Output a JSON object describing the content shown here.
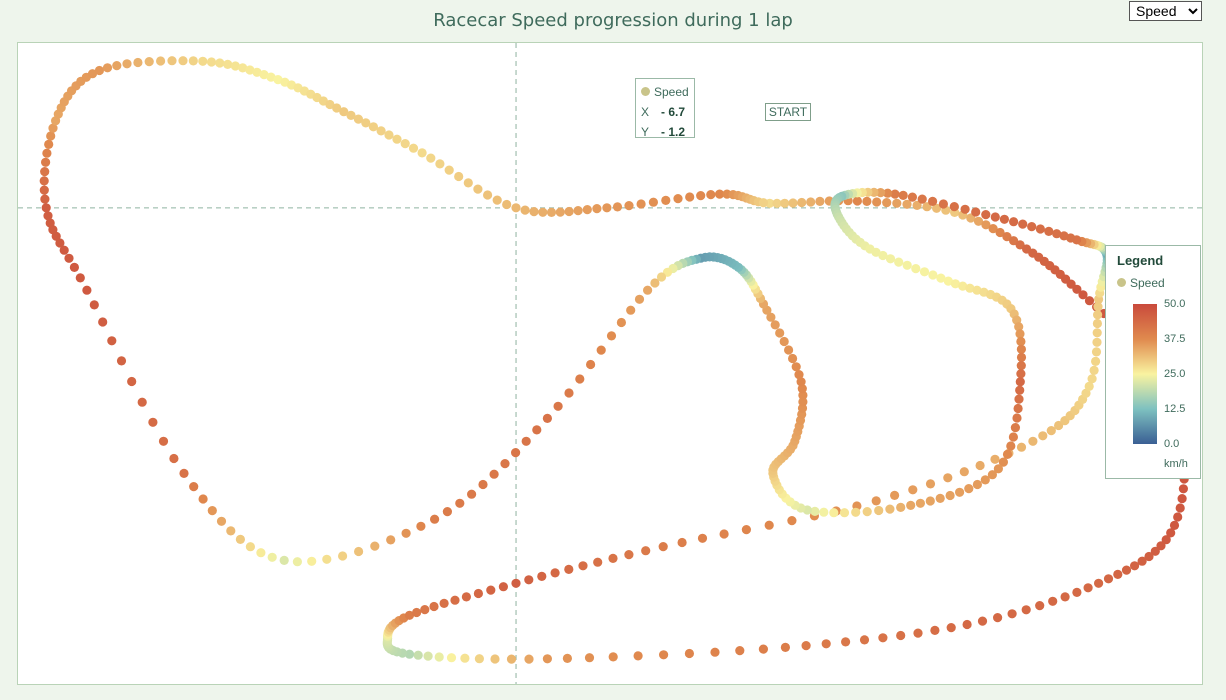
{
  "title": "Racecar Speed progression during 1 lap",
  "metric_select": {
    "selected": "Speed",
    "options": [
      "Speed"
    ]
  },
  "tooltip": {
    "series": "Speed",
    "x_label": "X",
    "x_value": "- 6.7",
    "y_label": "Y",
    "y_value": "- 1.2"
  },
  "start_label": "START",
  "legend": {
    "title": "Legend",
    "series": "Speed",
    "ticks": [
      "50.0",
      "37.5",
      "25.0",
      "12.5",
      "0.0"
    ],
    "unit": "km/h"
  },
  "colors": {
    "scale": [
      "#3a5f94",
      "#7ec1c0",
      "#f9f3a0",
      "#e08a4e",
      "#c94a3c"
    ],
    "crosshair": "#8fb3a1",
    "plot_border": "#b9d3b7"
  },
  "chart_data": {
    "type": "scatter",
    "title": "Racecar Speed progression during 1 lap",
    "xlabel": "",
    "ylabel": "",
    "color_scale": {
      "name": "Speed",
      "unit": "km/h",
      "min": 0.0,
      "max": 50.0
    },
    "crosshair": {
      "x": -6.7,
      "y": -1.2
    },
    "grid": false,
    "legend_position": "right",
    "series": [
      {
        "name": "Speed",
        "points": [
          {
            "x": 1.4,
            "y": -1.1,
            "speed": 28
          },
          {
            "x": 4.2,
            "y": -1.05,
            "speed": 38
          },
          {
            "x": 7.3,
            "y": -1.3,
            "speed": 30
          },
          {
            "x": 9.6,
            "y": -2.1,
            "speed": 44
          },
          {
            "x": 11.4,
            "y": -3.1,
            "speed": 47
          },
          {
            "x": 13.6,
            "y": -4.6,
            "speed": 48
          },
          {
            "x": 14.6,
            "y": -6.3,
            "speed": 48
          },
          {
            "x": 14.2,
            "y": -8.3,
            "speed": 47
          },
          {
            "x": 11.9,
            "y": -9.4,
            "speed": 44
          },
          {
            "x": 7.7,
            "y": -10.3,
            "speed": 44
          },
          {
            "x": 1.9,
            "y": -10.8,
            "speed": 40
          },
          {
            "x": -5.7,
            "y": -11.05,
            "speed": 36
          },
          {
            "x": -10.1,
            "y": -10.95,
            "speed": 18
          },
          {
            "x": -10.8,
            "y": -10.6,
            "speed": 22
          },
          {
            "x": -10.1,
            "y": -10.1,
            "speed": 40
          },
          {
            "x": -6.7,
            "y": -9.4,
            "speed": 46
          },
          {
            "x": -2.0,
            "y": -8.6,
            "speed": 40
          },
          {
            "x": 4.8,
            "y": -7.6,
            "speed": 36
          },
          {
            "x": 9.8,
            "y": -6.3,
            "speed": 32
          },
          {
            "x": 11.6,
            "y": -5.1,
            "speed": 28
          },
          {
            "x": 11.9,
            "y": -3.2,
            "speed": 30
          },
          {
            "x": 12.15,
            "y": -2.2,
            "speed": 10
          },
          {
            "x": 11.2,
            "y": -1.9,
            "speed": 42
          },
          {
            "x": 8.6,
            "y": -1.4,
            "speed": 44
          },
          {
            "x": 5.4,
            "y": -0.9,
            "speed": 40
          },
          {
            "x": 3.7,
            "y": -0.95,
            "speed": 14
          },
          {
            "x": 3.6,
            "y": -1.4,
            "speed": 20
          },
          {
            "x": 4.6,
            "y": -2.1,
            "speed": 24
          },
          {
            "x": 7.1,
            "y": -2.8,
            "speed": 25
          },
          {
            "x": 9.1,
            "y": -3.4,
            "speed": 30
          },
          {
            "x": 9.4,
            "y": -5.0,
            "speed": 44
          },
          {
            "x": 8.7,
            "y": -6.9,
            "speed": 36
          },
          {
            "x": 5.9,
            "y": -7.7,
            "speed": 34
          },
          {
            "x": 2.6,
            "y": -7.8,
            "speed": 22
          },
          {
            "x": 1.5,
            "y": -7.0,
            "speed": 30
          },
          {
            "x": 2.2,
            "y": -6.3,
            "speed": 34
          },
          {
            "x": 2.4,
            "y": -5.0,
            "speed": 38
          },
          {
            "x": 1.2,
            "y": -3.3,
            "speed": 34
          },
          {
            "x": 0.4,
            "y": -2.5,
            "speed": 12
          },
          {
            "x": -0.8,
            "y": -2.3,
            "speed": 8
          },
          {
            "x": -2.5,
            "y": -3.0,
            "speed": 34
          },
          {
            "x": -5.7,
            "y": -5.8,
            "speed": 42
          },
          {
            "x": -9.3,
            "y": -8.0,
            "speed": 40
          },
          {
            "x": -14.1,
            "y": -8.9,
            "speed": 22
          },
          {
            "x": -17.3,
            "y": -7.0,
            "speed": 42
          },
          {
            "x": -20.4,
            "y": -3.0,
            "speed": 47
          },
          {
            "x": -21.7,
            "y": -1.2,
            "speed": 46
          },
          {
            "x": -21.4,
            "y": 0.7,
            "speed": 34
          },
          {
            "x": -20.0,
            "y": 1.8,
            "speed": 36
          },
          {
            "x": -16.7,
            "y": 2.0,
            "speed": 28
          },
          {
            "x": -14.3,
            "y": 1.6,
            "speed": 25
          },
          {
            "x": -12.2,
            "y": 0.9,
            "speed": 30
          },
          {
            "x": -9.7,
            "y": 0.0,
            "speed": 28
          },
          {
            "x": -6.7,
            "y": -1.2,
            "speed": 32
          },
          {
            "x": -3.8,
            "y": -1.2,
            "speed": 36
          },
          {
            "x": -0.2,
            "y": -0.9,
            "speed": 38
          },
          {
            "x": 1.4,
            "y": -1.1,
            "speed": 28
          }
        ]
      }
    ]
  }
}
